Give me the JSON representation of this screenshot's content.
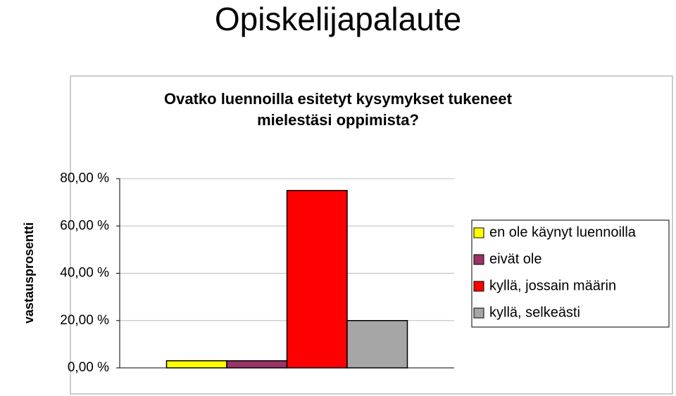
{
  "title": "Opiskelijapalaute",
  "chart_data": {
    "type": "bar",
    "title": "Ovatko luennoilla esitetyt kysymykset tukeneet mielestäsi oppimista?",
    "y_label": "vastausprosentti",
    "categories": [
      null
    ],
    "series": [
      {
        "name": "en ole käynyt luennoilla",
        "color": "#ffff00",
        "values": [
          3
        ]
      },
      {
        "name": "eivät ole",
        "color": "#993366",
        "values": [
          3
        ]
      },
      {
        "name": "kyllä, jossain määrin",
        "color": "#ff0000",
        "values": [
          75
        ]
      },
      {
        "name": "kyllä, selkeästi",
        "color": "#a6a6a6",
        "values": [
          20
        ]
      }
    ],
    "ylim": [
      0,
      80
    ],
    "yticks": [
      {
        "value": 0,
        "label": "0,00 %"
      },
      {
        "value": 20,
        "label": "20,00 %"
      },
      {
        "value": 40,
        "label": "40,00 %"
      },
      {
        "value": 60,
        "label": "60,00 %"
      },
      {
        "value": 80,
        "label": "80,00 %"
      }
    ],
    "grid": true,
    "legend": "right"
  }
}
